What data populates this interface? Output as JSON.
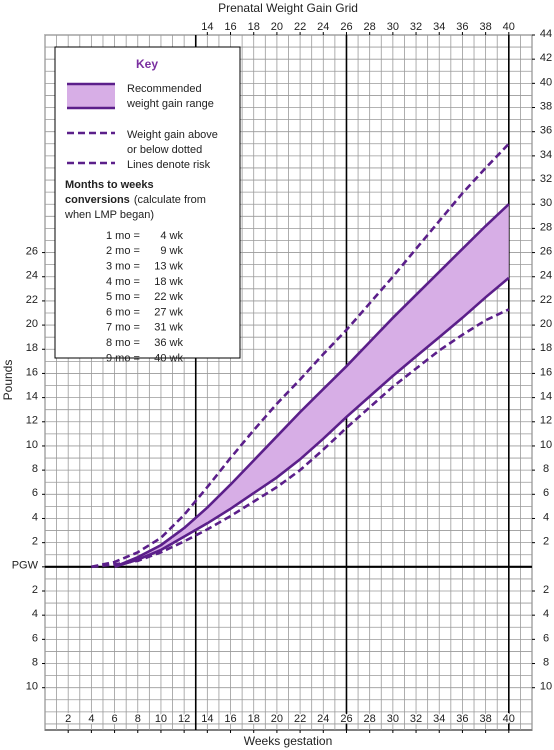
{
  "chart_data": {
    "type": "line",
    "title": "Prenatal Weight Gain Grid",
    "x_label": "Weeks gestation",
    "y_label": "Pounds",
    "x": [
      4,
      6,
      8,
      10,
      12,
      14,
      16,
      18,
      20,
      22,
      24,
      26,
      28,
      30,
      32,
      34,
      36,
      38,
      40
    ],
    "series": [
      {
        "style": "dashed",
        "color": "#5b1f8a",
        "values": [
          0,
          0.4,
          1.2,
          2.4,
          4.3,
          6.6,
          9.0,
          11.3,
          13.5,
          15.5,
          17.6,
          19.6,
          21.8,
          24.0,
          26.3,
          28.6,
          30.9,
          33.0,
          35.0
        ]
      },
      {
        "style": "solid",
        "color": "#5b1f8a",
        "values": [
          null,
          0,
          0.8,
          1.8,
          3.2,
          4.9,
          6.8,
          8.8,
          10.8,
          12.8,
          14.7,
          16.6,
          18.6,
          20.6,
          22.5,
          24.4,
          26.3,
          28.2,
          30.0
        ]
      },
      {
        "style": "solid",
        "color": "#5b1f8a",
        "values": [
          null,
          0,
          0.6,
          1.4,
          2.5,
          3.6,
          4.8,
          6.1,
          7.4,
          8.9,
          10.6,
          12.4,
          14.1,
          15.8,
          17.4,
          19.0,
          20.6,
          22.3,
          23.9
        ]
      },
      {
        "style": "dashed",
        "color": "#5b1f8a",
        "values": [
          0,
          0.2,
          0.5,
          1.2,
          2.1,
          3.1,
          4.2,
          5.4,
          6.6,
          8.0,
          9.7,
          11.5,
          13.2,
          14.9,
          16.4,
          17.9,
          19.2,
          20.4,
          21.3
        ]
      }
    ],
    "fill_between": [
      1,
      2
    ],
    "fill_color": "#d7aee6",
    "xlim": [
      0,
      42
    ],
    "ylim": [
      -13.5,
      44
    ],
    "y2lim": [
      -13.5,
      44
    ],
    "xticks": [
      2,
      4,
      6,
      8,
      10,
      12,
      14,
      16,
      18,
      20,
      22,
      24,
      26,
      28,
      30,
      32,
      34,
      36,
      38,
      40
    ],
    "x2ticks": [
      14,
      16,
      18,
      20,
      22,
      24,
      26,
      28,
      30,
      32,
      34,
      36,
      38,
      40
    ],
    "yticks": [
      {
        "value": -10,
        "label": "10"
      },
      {
        "value": -8,
        "label": "8"
      },
      {
        "value": -6,
        "label": "6"
      },
      {
        "value": -4,
        "label": "4"
      },
      {
        "value": -2,
        "label": "2"
      },
      {
        "value": 0,
        "label": "PGW"
      },
      2,
      4,
      6,
      8,
      10,
      12,
      14,
      16,
      18,
      20,
      22,
      24,
      26
    ],
    "y2ticks": [
      {
        "value": -10,
        "label": "10"
      },
      {
        "value": -8,
        "label": "8"
      },
      {
        "value": -6,
        "label": "6"
      },
      {
        "value": -4,
        "label": "4"
      },
      {
        "value": -2,
        "label": "2"
      },
      2,
      4,
      6,
      8,
      10,
      12,
      14,
      16,
      18,
      20,
      22,
      24,
      26,
      28,
      30,
      32,
      34,
      36,
      38,
      40,
      42,
      44
    ],
    "grid": true,
    "x_grid_step": 1,
    "y_grid_step": 1,
    "x_reference_lines": [
      13,
      26,
      40
    ],
    "y_reference_lines": [
      0
    ],
    "legend_position": "upper left",
    "key": {
      "title": "Key",
      "items": [
        {
          "style": "band",
          "lines": [
            "Recommended",
            "weight gain range"
          ]
        },
        {
          "style": "dashed",
          "lines": [
            "Weight gain above",
            "or below dotted",
            "Lines denote risk"
          ]
        }
      ],
      "heading": [
        "Months to weeks",
        "conversions"
      ],
      "note": [
        "(calculate from",
        "when LMP began)"
      ],
      "conversions": [
        {
          "months": "1 mo =",
          "weeks": "4 wk"
        },
        {
          "months": "2 mo =",
          "weeks": "9 wk"
        },
        {
          "months": "3 mo =",
          "weeks": "13 wk"
        },
        {
          "months": "4 mo =",
          "weeks": "18 wk"
        },
        {
          "months": "5 mo =",
          "weeks": "22 wk"
        },
        {
          "months": "6 mo =",
          "weeks": "27 wk"
        },
        {
          "months": "7 mo =",
          "weeks": "31 wk"
        },
        {
          "months": "8 mo =",
          "weeks": "36 wk"
        },
        {
          "months": "9 mo =",
          "weeks": "40 wk"
        }
      ]
    }
  }
}
